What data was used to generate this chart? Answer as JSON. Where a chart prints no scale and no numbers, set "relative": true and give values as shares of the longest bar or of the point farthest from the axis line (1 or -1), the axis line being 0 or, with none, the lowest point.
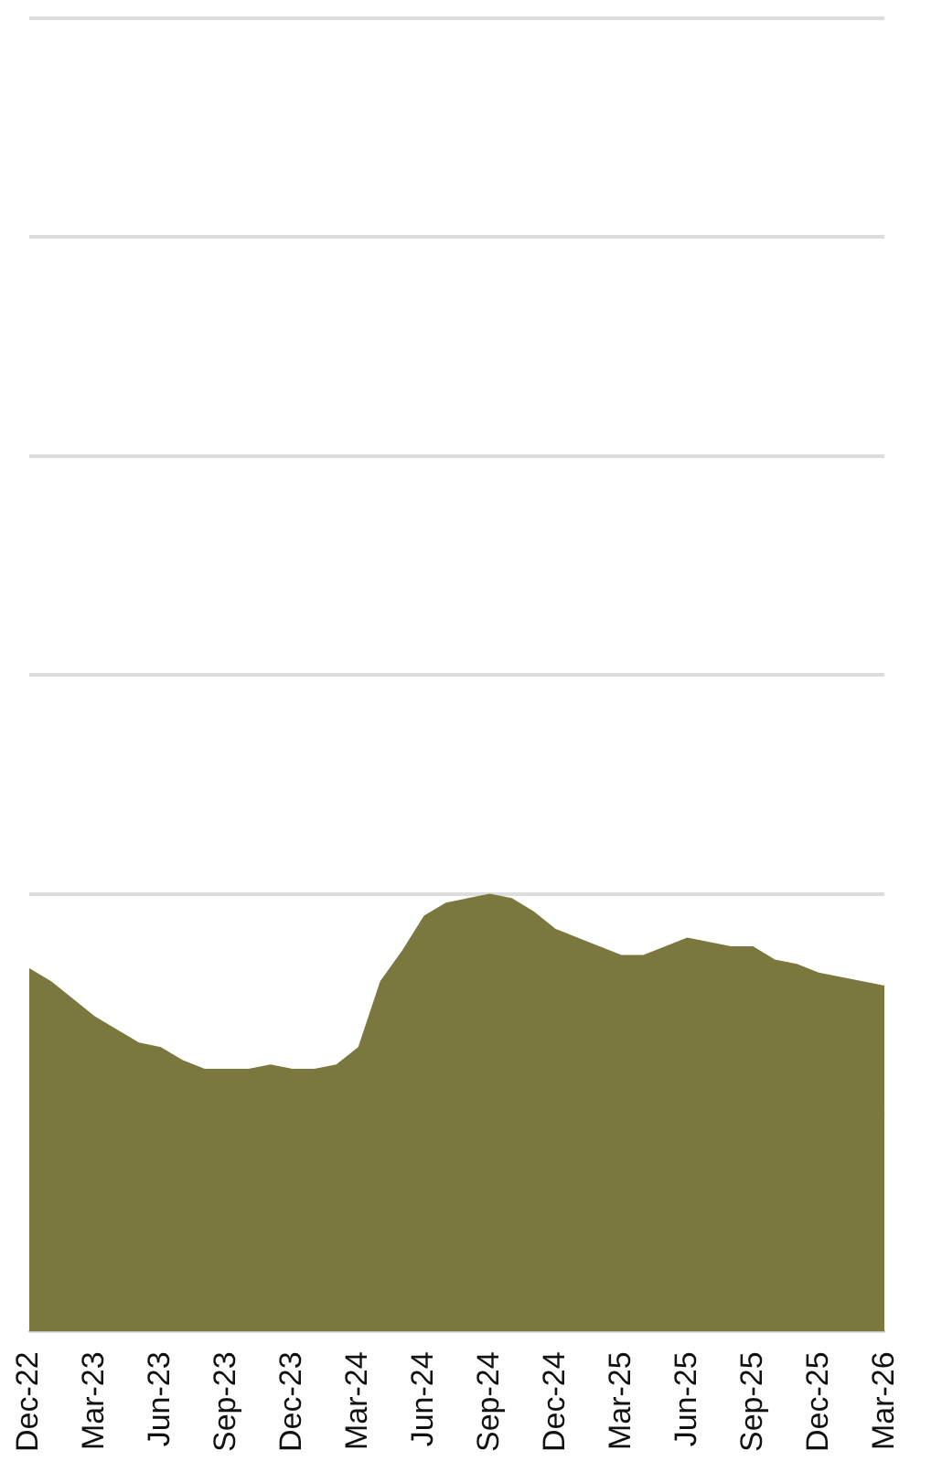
{
  "chart_data": {
    "type": "area",
    "relative": true,
    "grid": "y",
    "color": "#7a773f",
    "x": [
      "2022-12",
      "2023-01",
      "2023-02",
      "2023-03",
      "2023-04",
      "2023-05",
      "2023-06",
      "2023-07",
      "2023-08",
      "2023-09",
      "2023-10",
      "2023-11",
      "2023-12",
      "2024-01",
      "2024-02",
      "2024-03",
      "2024-04",
      "2024-05",
      "2024-06",
      "2024-07",
      "2024-08",
      "2024-09",
      "2024-10",
      "2024-11",
      "2024-12",
      "2025-01",
      "2025-02",
      "2025-03",
      "2025-04",
      "2025-05",
      "2025-06",
      "2025-07",
      "2025-08",
      "2025-09",
      "2025-10",
      "2025-11",
      "2025-12",
      "2026-01",
      "2026-02",
      "2026-03"
    ],
    "values": [
      0.83,
      0.8,
      0.76,
      0.72,
      0.69,
      0.66,
      0.65,
      0.62,
      0.6,
      0.6,
      0.6,
      0.61,
      0.6,
      0.6,
      0.61,
      0.65,
      0.8,
      0.87,
      0.95,
      0.98,
      0.99,
      1,
      0.99,
      0.96,
      0.92,
      0.9,
      0.88,
      0.86,
      0.86,
      0.88,
      0.9,
      0.89,
      0.88,
      0.88,
      0.85,
      0.84,
      0.82,
      0.81,
      0.8,
      0.79
    ],
    "xlim": [
      "2022-12",
      "2026-03"
    ],
    "xticks": [
      {
        "value": "2022-12",
        "label": "Dec-22"
      },
      {
        "value": "2023-03",
        "label": "Mar-23"
      },
      {
        "value": "2023-06",
        "label": "Jun-23"
      },
      {
        "value": "2023-09",
        "label": "Sep-23"
      },
      {
        "value": "2023-12",
        "label": "Dec-23"
      },
      {
        "value": "2024-03",
        "label": "Mar-24"
      },
      {
        "value": "2024-06",
        "label": "Jun-24"
      },
      {
        "value": "2024-09",
        "label": "Sep-24"
      },
      {
        "value": "2024-12",
        "label": "Dec-24"
      },
      {
        "value": "2025-03",
        "label": "Mar-25"
      },
      {
        "value": "2025-06",
        "label": "Jun-25"
      },
      {
        "value": "2025-09",
        "label": "Sep-25"
      },
      {
        "value": "2025-12",
        "label": "Dec-25"
      },
      {
        "value": "2026-03",
        "label": "Mar-26"
      }
    ]
  }
}
